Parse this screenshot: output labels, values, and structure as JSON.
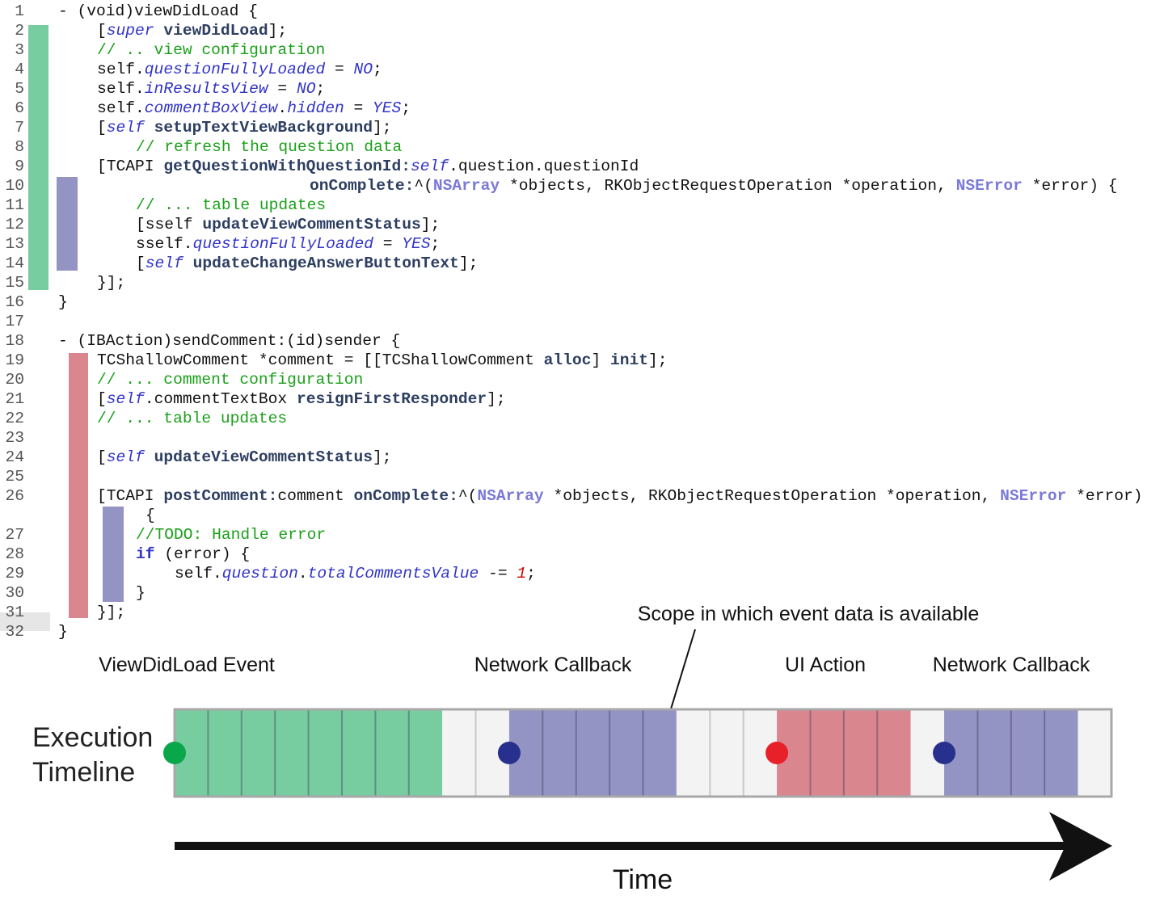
{
  "colors": {
    "viewdidload": "#77cca0",
    "network_callback": "#9394c4",
    "ui_action": "#d9868f",
    "idle": "#f2f3f2",
    "line_number": "#555555",
    "keyword_blue": "#3234c8",
    "comment_green": "#1aa01a",
    "selector_navy": "#2d3e61",
    "type_purple": "#7a7ad6",
    "number_red": "#d00000",
    "dot_green": "#0aa64a",
    "dot_navy": "#27308c",
    "dot_red": "#e8202a"
  },
  "code": {
    "line_numbers": [
      "1",
      "2",
      "3",
      "4",
      "5",
      "6",
      "7",
      "8",
      "9",
      "10",
      "11",
      "12",
      "13",
      "14",
      "15",
      "16",
      "17",
      "18",
      "19",
      "20",
      "21",
      "22",
      "23",
      "24",
      "25",
      "26",
      "27",
      "28",
      "29",
      "30",
      "31",
      "32"
    ],
    "lines": [
      {
        "n": "1",
        "tokens": [
          {
            "t": "- (void)viewDidLoad {",
            "c": "p"
          }
        ]
      },
      {
        "n": "2",
        "tokens": [
          {
            "t": "[",
            "c": "p"
          },
          {
            "t": "super",
            "c": "k"
          },
          {
            "t": " ",
            "c": "p"
          },
          {
            "t": "viewDidLoad",
            "c": "s"
          },
          {
            "t": "];",
            "c": "p"
          }
        ]
      },
      {
        "n": "3",
        "tokens": [
          {
            "t": "// .. view configuration",
            "c": "g"
          }
        ]
      },
      {
        "n": "4",
        "tokens": [
          {
            "t": "self.",
            "c": "p"
          },
          {
            "t": "questionFullyLoaded",
            "c": "k"
          },
          {
            "t": " = ",
            "c": "p"
          },
          {
            "t": "NO",
            "c": "k"
          },
          {
            "t": ";",
            "c": "p"
          }
        ]
      },
      {
        "n": "5",
        "tokens": [
          {
            "t": "self.",
            "c": "p"
          },
          {
            "t": "inResultsView",
            "c": "k"
          },
          {
            "t": " = ",
            "c": "p"
          },
          {
            "t": "NO",
            "c": "k"
          },
          {
            "t": ";",
            "c": "p"
          }
        ]
      },
      {
        "n": "6",
        "tokens": [
          {
            "t": "self.",
            "c": "p"
          },
          {
            "t": "commentBoxView",
            "c": "k"
          },
          {
            "t": ".",
            "c": "p"
          },
          {
            "t": "hidden",
            "c": "k"
          },
          {
            "t": " = ",
            "c": "p"
          },
          {
            "t": "YES",
            "c": "k"
          },
          {
            "t": ";",
            "c": "p"
          }
        ]
      },
      {
        "n": "7",
        "tokens": [
          {
            "t": "[",
            "c": "p"
          },
          {
            "t": "self",
            "c": "k"
          },
          {
            "t": " ",
            "c": "p"
          },
          {
            "t": "setupTextViewBackground",
            "c": "s"
          },
          {
            "t": "];",
            "c": "p"
          }
        ]
      },
      {
        "n": "8",
        "tokens": [
          {
            "t": "// refresh the question data",
            "c": "g"
          }
        ]
      },
      {
        "n": "9",
        "tokens": [
          {
            "t": "[TCAPI ",
            "c": "p"
          },
          {
            "t": "getQuestionWithQuestionId:",
            "c": "s"
          },
          {
            "t": "self",
            "c": "k"
          },
          {
            "t": ".question.questionId",
            "c": "p"
          }
        ]
      },
      {
        "n": "10",
        "tokens": [
          {
            "t": "onComplete:",
            "c": "s"
          },
          {
            "t": "^(",
            "c": "p"
          },
          {
            "t": "NSArray",
            "c": "t"
          },
          {
            "t": " *objects, RKObjectRequestOperation *operation, ",
            "c": "p"
          },
          {
            "t": "NSError",
            "c": "t"
          },
          {
            "t": " *error) {",
            "c": "p"
          }
        ]
      },
      {
        "n": "11",
        "tokens": [
          {
            "t": "// ... table updates",
            "c": "g"
          }
        ]
      },
      {
        "n": "12",
        "tokens": [
          {
            "t": "[sself ",
            "c": "p"
          },
          {
            "t": "updateViewCommentStatus",
            "c": "s"
          },
          {
            "t": "];",
            "c": "p"
          }
        ]
      },
      {
        "n": "13",
        "tokens": [
          {
            "t": "sself.",
            "c": "p"
          },
          {
            "t": "questionFullyLoaded",
            "c": "k"
          },
          {
            "t": " = ",
            "c": "p"
          },
          {
            "t": "YES",
            "c": "k"
          },
          {
            "t": ";",
            "c": "p"
          }
        ]
      },
      {
        "n": "14",
        "tokens": [
          {
            "t": "[",
            "c": "p"
          },
          {
            "t": "self",
            "c": "k"
          },
          {
            "t": " ",
            "c": "p"
          },
          {
            "t": "updateChangeAnswerButtonText",
            "c": "s"
          },
          {
            "t": "];",
            "c": "p"
          }
        ]
      },
      {
        "n": "15",
        "tokens": [
          {
            "t": "}];",
            "c": "p"
          }
        ]
      },
      {
        "n": "16",
        "tokens": [
          {
            "t": "}",
            "c": "p"
          }
        ]
      },
      {
        "n": "17",
        "tokens": []
      },
      {
        "n": "18",
        "tokens": [
          {
            "t": "- (IBAction)sendComment:(id)sender {",
            "c": "p"
          }
        ]
      },
      {
        "n": "19",
        "tokens": [
          {
            "t": "TCShallowComment *comment = [[TCShallowComment ",
            "c": "p"
          },
          {
            "t": "alloc",
            "c": "s"
          },
          {
            "t": "] ",
            "c": "p"
          },
          {
            "t": "init",
            "c": "s"
          },
          {
            "t": "];",
            "c": "p"
          }
        ]
      },
      {
        "n": "20",
        "tokens": [
          {
            "t": "// ... comment configuration",
            "c": "g"
          }
        ]
      },
      {
        "n": "21",
        "tokens": [
          {
            "t": "[",
            "c": "p"
          },
          {
            "t": "self",
            "c": "k"
          },
          {
            "t": ".commentTextBox ",
            "c": "p"
          },
          {
            "t": "resignFirstResponder",
            "c": "s"
          },
          {
            "t": "];",
            "c": "p"
          }
        ]
      },
      {
        "n": "22",
        "tokens": [
          {
            "t": "// ... table updates",
            "c": "g"
          }
        ]
      },
      {
        "n": "23",
        "tokens": []
      },
      {
        "n": "24",
        "tokens": [
          {
            "t": "[",
            "c": "p"
          },
          {
            "t": "self",
            "c": "k"
          },
          {
            "t": " ",
            "c": "p"
          },
          {
            "t": "updateViewCommentStatus",
            "c": "s"
          },
          {
            "t": "];",
            "c": "p"
          }
        ]
      },
      {
        "n": "25",
        "tokens": []
      },
      {
        "n": "26",
        "tokens": [
          {
            "t": "[TCAPI ",
            "c": "p"
          },
          {
            "t": "postComment:",
            "c": "s"
          },
          {
            "t": "comment ",
            "c": "p"
          },
          {
            "t": "onComplete:",
            "c": "s"
          },
          {
            "t": "^(",
            "c": "p"
          },
          {
            "t": "NSArray",
            "c": "t"
          },
          {
            "t": " *objects, RKObjectRequestOperation *operation, ",
            "c": "p"
          },
          {
            "t": "NSError",
            "c": "t"
          },
          {
            "t": " *error)",
            "c": "p"
          }
        ]
      },
      {
        "n": "",
        "tokens": [
          {
            "t": "{",
            "c": "p"
          }
        ]
      },
      {
        "n": "27",
        "tokens": [
          {
            "t": "//TODO: Handle error",
            "c": "g"
          }
        ]
      },
      {
        "n": "28",
        "tokens": [
          {
            "t": "if",
            "c": "kb"
          },
          {
            "t": " (error) {",
            "c": "p"
          }
        ]
      },
      {
        "n": "29",
        "tokens": [
          {
            "t": "self.",
            "c": "p"
          },
          {
            "t": "question",
            "c": "k"
          },
          {
            "t": ".",
            "c": "p"
          },
          {
            "t": "totalCommentsValue",
            "c": "k"
          },
          {
            "t": " -= ",
            "c": "p"
          },
          {
            "t": "1",
            "c": "r"
          },
          {
            "t": ";",
            "c": "p"
          }
        ]
      },
      {
        "n": "30",
        "tokens": [
          {
            "t": "}",
            "c": "p"
          }
        ]
      },
      {
        "n": "31",
        "tokens": [
          {
            "t": "}];",
            "c": "p"
          }
        ]
      },
      {
        "n": "32",
        "tokens": [
          {
            "t": "}",
            "c": "p"
          }
        ]
      }
    ]
  },
  "diagram": {
    "scope_label": "Scope in which event data is available",
    "event_labels": [
      "ViewDidLoad Event",
      "Network Callback",
      "UI Action",
      "Network Callback"
    ],
    "execution_label_line1": "Execution",
    "execution_label_line2": "Timeline",
    "time_label": "Time",
    "timeline_segments": [
      {
        "type": "viewdidload",
        "cells": 8
      },
      {
        "type": "idle",
        "cells": 2
      },
      {
        "type": "network_callback",
        "cells": 5
      },
      {
        "type": "idle",
        "cells": 3
      },
      {
        "type": "ui_action",
        "cells": 4
      },
      {
        "type": "idle",
        "cells": 1
      },
      {
        "type": "network_callback",
        "cells": 4
      },
      {
        "type": "idle",
        "cells": 1
      }
    ],
    "event_dots": [
      "dot_green",
      "dot_navy",
      "dot_red",
      "dot_navy"
    ]
  }
}
